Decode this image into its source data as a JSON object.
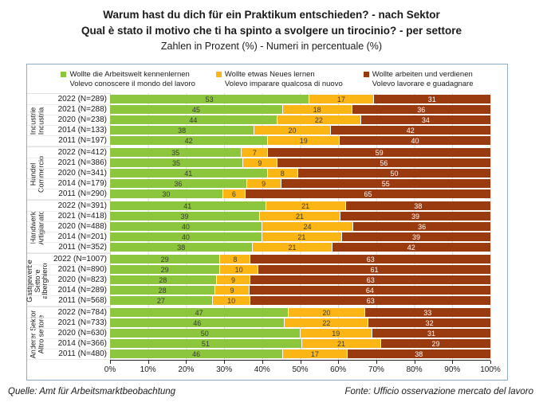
{
  "page": {
    "title_de": "Warum hast du dich für ein Praktikum entschieden? - nach Sektor",
    "title_it": "Qual è stato il motivo che ti ha spinto a svolgere un tirocinio? - per settore",
    "subtitle": "Zahlen in Prozent (%) - Numeri in percentuale (%)"
  },
  "legend": {
    "items": [
      {
        "label_de": "Wollte die Arbeitswelt kennenlernen",
        "label_it": "Volevo conoscere il mondo del lavoro",
        "color": "#8CC63C"
      },
      {
        "label_de": "Wollte etwas Neues lernen",
        "label_it": "Volevo imparare qualcosa di nuovo",
        "color": "#FBB615"
      },
      {
        "label_de": "Wollte arbeiten und verdienen",
        "label_it": "Volevo lavorare e guadagnare",
        "color": "#993A0F"
      }
    ]
  },
  "chart_data": {
    "type": "bar",
    "orientation": "horizontal",
    "stacked": true,
    "unit": "percent",
    "grid": true,
    "legend_position": "top",
    "xlim": [
      0,
      100
    ],
    "x_ticks": [
      "0%",
      "10%",
      "20%",
      "30%",
      "40%",
      "50%",
      "60%",
      "70%",
      "80%",
      "90%",
      "100%"
    ],
    "series": [
      "Wollte die Arbeitswelt kennenlernen / Volevo conoscere il mondo del lavoro",
      "Wollte etwas Neues lernen / Volevo imparare qualcosa di nuovo",
      "Wollte arbeiten und verdienen / Volevo lavorare e guadagnare"
    ],
    "colors": [
      "#8CC63C",
      "#FBB615",
      "#993A0F"
    ],
    "value_text_colors": [
      "#3A3A3A",
      "#3A3A3A",
      "#FFFFFF"
    ],
    "groups": [
      {
        "sector": "Industrie\nIndustria",
        "rows": [
          {
            "label": "2022 (N=289)",
            "values": [
              53,
              17,
              31
            ]
          },
          {
            "label": "2021 (N=288)",
            "values": [
              45,
              18,
              36
            ]
          },
          {
            "label": "2020 (N=238)",
            "values": [
              44,
              22,
              34
            ]
          },
          {
            "label": "2014 (N=133)",
            "values": [
              38,
              20,
              42
            ]
          },
          {
            "label": "2011 (N=197)",
            "values": [
              42,
              19,
              40
            ]
          }
        ]
      },
      {
        "sector": "Handel\nCommercio",
        "rows": [
          {
            "label": "2022 (N=412)",
            "values": [
              35,
              7,
              59
            ]
          },
          {
            "label": "2021 (N=386)",
            "values": [
              35,
              9,
              56
            ]
          },
          {
            "label": "2020 (N=341)",
            "values": [
              41,
              8,
              50
            ]
          },
          {
            "label": "2014 (N=179)",
            "values": [
              36,
              9,
              55
            ]
          },
          {
            "label": "2011 (N=290)",
            "values": [
              30,
              6,
              65
            ]
          }
        ]
      },
      {
        "sector": "Handwerk\nArtigianato",
        "rows": [
          {
            "label": "2022 (N=391)",
            "values": [
              41,
              21,
              38
            ]
          },
          {
            "label": "2021 (N=418)",
            "values": [
              39,
              21,
              39
            ]
          },
          {
            "label": "2020 (N=488)",
            "values": [
              40,
              24,
              36
            ]
          },
          {
            "label": "2014 (N=201)",
            "values": [
              40,
              21,
              39
            ]
          },
          {
            "label": "2011 (N=352)",
            "values": [
              38,
              21,
              42
            ]
          }
        ]
      },
      {
        "sector": "Gastgewerbe\nSettore\nalberghiero",
        "rows": [
          {
            "label": "2022 (N=1007)",
            "values": [
              29,
              8,
              63
            ]
          },
          {
            "label": "2021 (N=890)",
            "values": [
              29,
              10,
              61
            ]
          },
          {
            "label": "2020 (N=823)",
            "values": [
              28,
              9,
              63
            ]
          },
          {
            "label": "2014 (N=289)",
            "values": [
              28,
              9,
              64
            ]
          },
          {
            "label": "2011 (N=568)",
            "values": [
              27,
              10,
              63
            ]
          }
        ]
      },
      {
        "sector": "Anderer Sektor\nAltro settore",
        "rows": [
          {
            "label": "2022 (N=784)",
            "values": [
              47,
              20,
              33
            ]
          },
          {
            "label": "2021 (N=733)",
            "values": [
              46,
              22,
              32
            ]
          },
          {
            "label": "2020 (N=630)",
            "values": [
              50,
              19,
              31
            ]
          },
          {
            "label": "2014 (N=366)",
            "values": [
              51,
              21,
              29
            ]
          },
          {
            "label": "2011 (N=480)",
            "values": [
              46,
              17,
              38
            ]
          }
        ]
      }
    ]
  },
  "footer": {
    "source_de": "Quelle: Amt für Arbeitsmarktbeobachtung",
    "source_it": "Fonte: Ufficio osservazione mercato del lavoro"
  }
}
